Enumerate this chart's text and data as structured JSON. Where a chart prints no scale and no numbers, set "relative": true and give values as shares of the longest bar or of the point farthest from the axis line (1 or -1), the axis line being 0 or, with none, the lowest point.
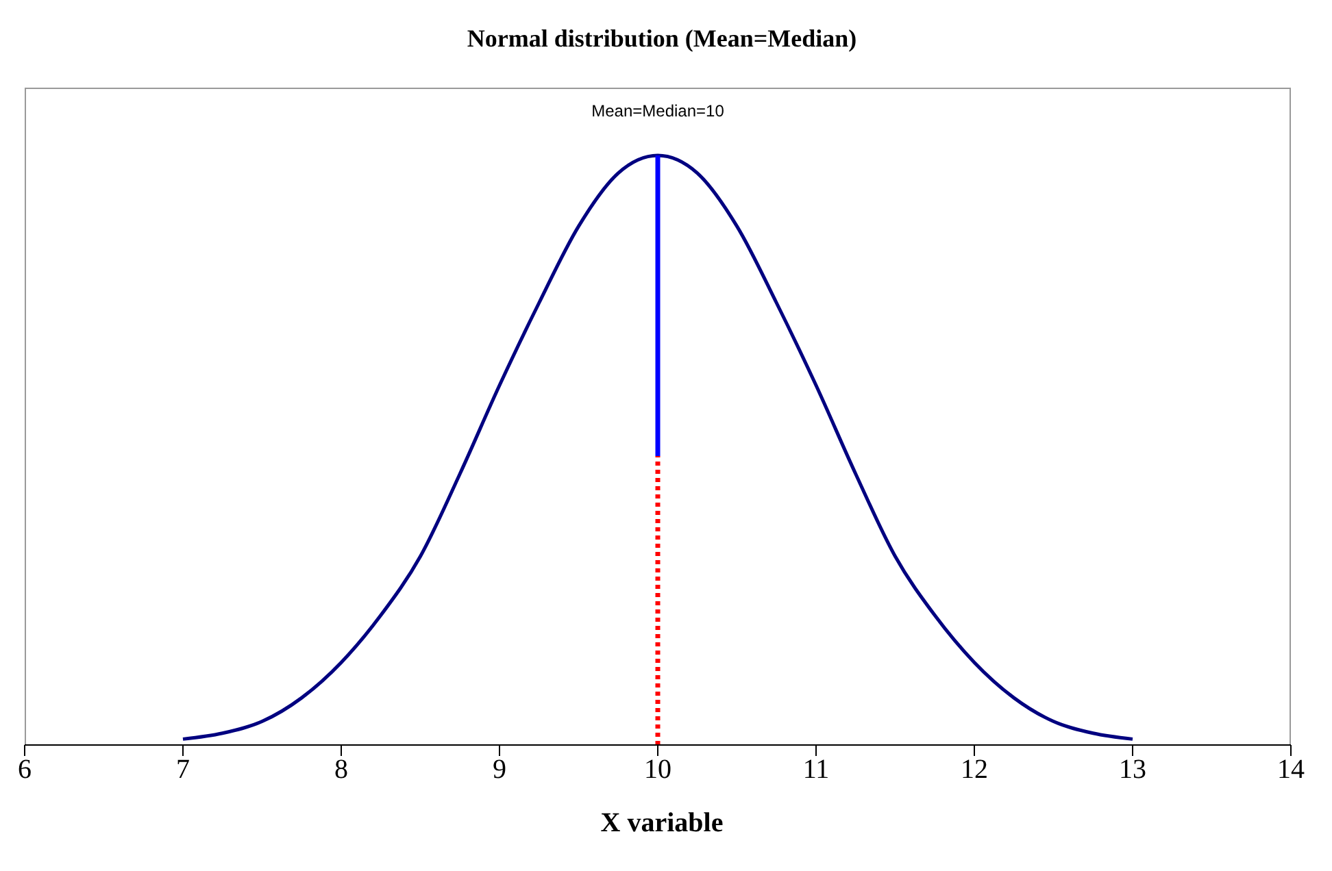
{
  "chart_data": {
    "type": "line",
    "title": "Normal distribution (Mean=Median)",
    "xlabel": "X variable",
    "relative": true,
    "xlim": [
      6,
      14
    ],
    "xticks": [
      6,
      7,
      8,
      9,
      10,
      11,
      12,
      13,
      14
    ],
    "marker": "none",
    "annotations": [
      "Mean=Median=10"
    ],
    "series": [
      {
        "color": "#000080",
        "line_style": "solid",
        "x": [
          7,
          7.25,
          7.5,
          7.75,
          8,
          8.25,
          8.5,
          8.75,
          9,
          9.25,
          9.5,
          9.75,
          10,
          10.25,
          10.5,
          10.75,
          11,
          11.25,
          11.5,
          11.75,
          12,
          12.25,
          12.5,
          12.75,
          13
        ],
        "values": [
          0.01,
          0.02,
          0.04,
          0.08,
          0.14,
          0.22,
          0.32,
          0.46,
          0.61,
          0.75,
          0.88,
          0.97,
          1,
          0.97,
          0.88,
          0.75,
          0.61,
          0.46,
          0.32,
          0.22,
          0.14,
          0.08,
          0.04,
          0.02,
          0.01
        ]
      },
      {
        "color": "#0000ff",
        "line_style": "solid",
        "x": [
          10,
          10
        ],
        "values": [
          0.49,
          1
        ]
      },
      {
        "color": "#ff0000",
        "line_style": "dotted",
        "x": [
          10,
          10
        ],
        "values": [
          0,
          0.49
        ]
      }
    ]
  }
}
